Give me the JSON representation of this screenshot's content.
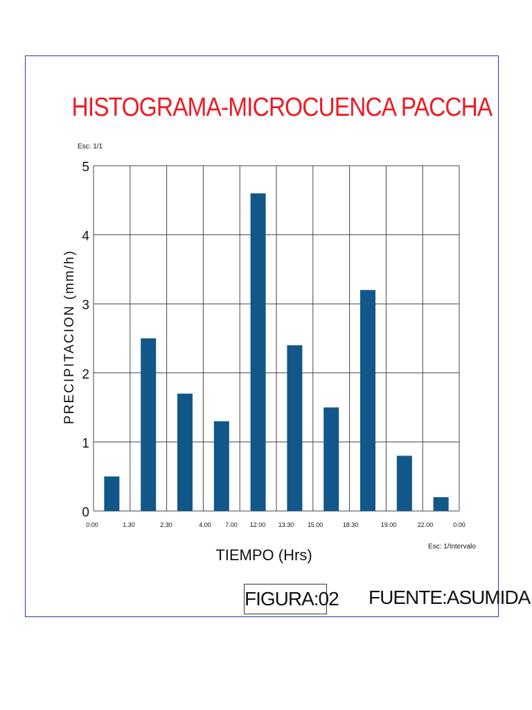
{
  "chart_data": {
    "type": "bar",
    "title": "HISTOGRAMA-MICROCUENCA PACCHA",
    "xlabel": "TIEMPO  (Hrs)",
    "ylabel": "PRECIPITACION (mm/h)",
    "x_ticks": [
      "0.00",
      "1.30",
      "2.30",
      "4.00",
      "7.00",
      "12.00",
      "13.30",
      "15.00",
      "18.30",
      "19.00",
      "22.00",
      "0.00"
    ],
    "y_ticks": [
      "0",
      "1",
      "2",
      "3",
      "4",
      "5"
    ],
    "ylim": [
      0,
      5
    ],
    "values": [
      0,
      0.5,
      2.5,
      1.7,
      1.3,
      4.6,
      2.4,
      1.5,
      3.2,
      0.8,
      0.2
    ],
    "color": "#12578a",
    "grid": true,
    "scale_y_note": "Esc: 1/1",
    "scale_x_note": "Esc: 1/Intervalo"
  },
  "figure_label": "FIGURA:02",
  "source_label": "FUENTE:ASUMIDA",
  "colors": {
    "title": "#ee1b24",
    "bar": "#12578a",
    "frame": "#1d3fa8"
  }
}
